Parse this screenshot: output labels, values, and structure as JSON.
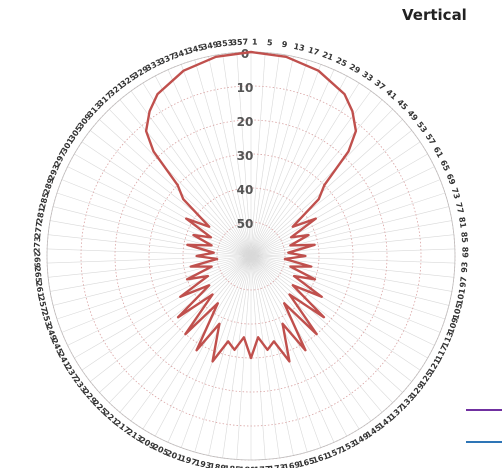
{
  "chart_data": {
    "type": "polar-line",
    "title": "Vertical",
    "angle_tick_labels": [
      1,
      5,
      9,
      13,
      17,
      21,
      25,
      29,
      33,
      37,
      41,
      45,
      49,
      53,
      57,
      61,
      65,
      69,
      73,
      77,
      81,
      85,
      89,
      93,
      97,
      101,
      105,
      109,
      113,
      117,
      121,
      125,
      129,
      133,
      137,
      141,
      145,
      149,
      153,
      157,
      161,
      165,
      169,
      173,
      177,
      181,
      185,
      189,
      193,
      197,
      201,
      205,
      209,
      213,
      217,
      221,
      225,
      229,
      233,
      237,
      241,
      245,
      249,
      253,
      257,
      261,
      265,
      269,
      273,
      277,
      281,
      285,
      289,
      293,
      297,
      301,
      305,
      309,
      313,
      317,
      321,
      325,
      329,
      333,
      337,
      341,
      345,
      349,
      353,
      357
    ],
    "radial_axis": {
      "ticks": [
        0,
        10,
        20,
        30,
        40,
        50
      ],
      "range": [
        0,
        60
      ],
      "direction": "inward-from-rim"
    },
    "grid": true,
    "series": [
      {
        "color": "#c0504d",
        "angles": [
          0,
          10,
          20,
          30,
          35,
          40,
          43,
          46,
          50,
          55,
          60,
          65,
          70,
          75,
          80,
          85,
          90,
          95,
          100,
          105,
          110,
          115,
          120,
          125,
          130,
          135,
          140,
          145,
          150,
          155,
          160,
          165,
          170,
          175,
          180,
          185,
          190,
          195,
          200,
          205,
          210,
          215,
          220,
          225,
          230,
          235,
          240,
          245,
          250,
          255,
          260,
          265,
          270,
          275,
          280,
          285,
          290,
          295,
          300,
          305,
          310,
          314,
          317,
          320,
          325,
          330,
          340,
          350
        ],
        "values": [
          0,
          0.5,
          2,
          5,
          8,
          12,
          18,
          30,
          34,
          45,
          38,
          47,
          42,
          48,
          41,
          49,
          44,
          50,
          42,
          48,
          40,
          46,
          36,
          45,
          32,
          44,
          30,
          43,
          28,
          38,
          27,
          34,
          32,
          36,
          30,
          36,
          32,
          34,
          27,
          38,
          28,
          43,
          30,
          44,
          32,
          45,
          36,
          46,
          40,
          48,
          42,
          50,
          44,
          49,
          41,
          48,
          42,
          47,
          38,
          45,
          34,
          30,
          18,
          12,
          8,
          5,
          2,
          0.5
        ]
      }
    ]
  },
  "legend": {
    "colors": [
      "#7030a0",
      "#2e75b6"
    ]
  }
}
